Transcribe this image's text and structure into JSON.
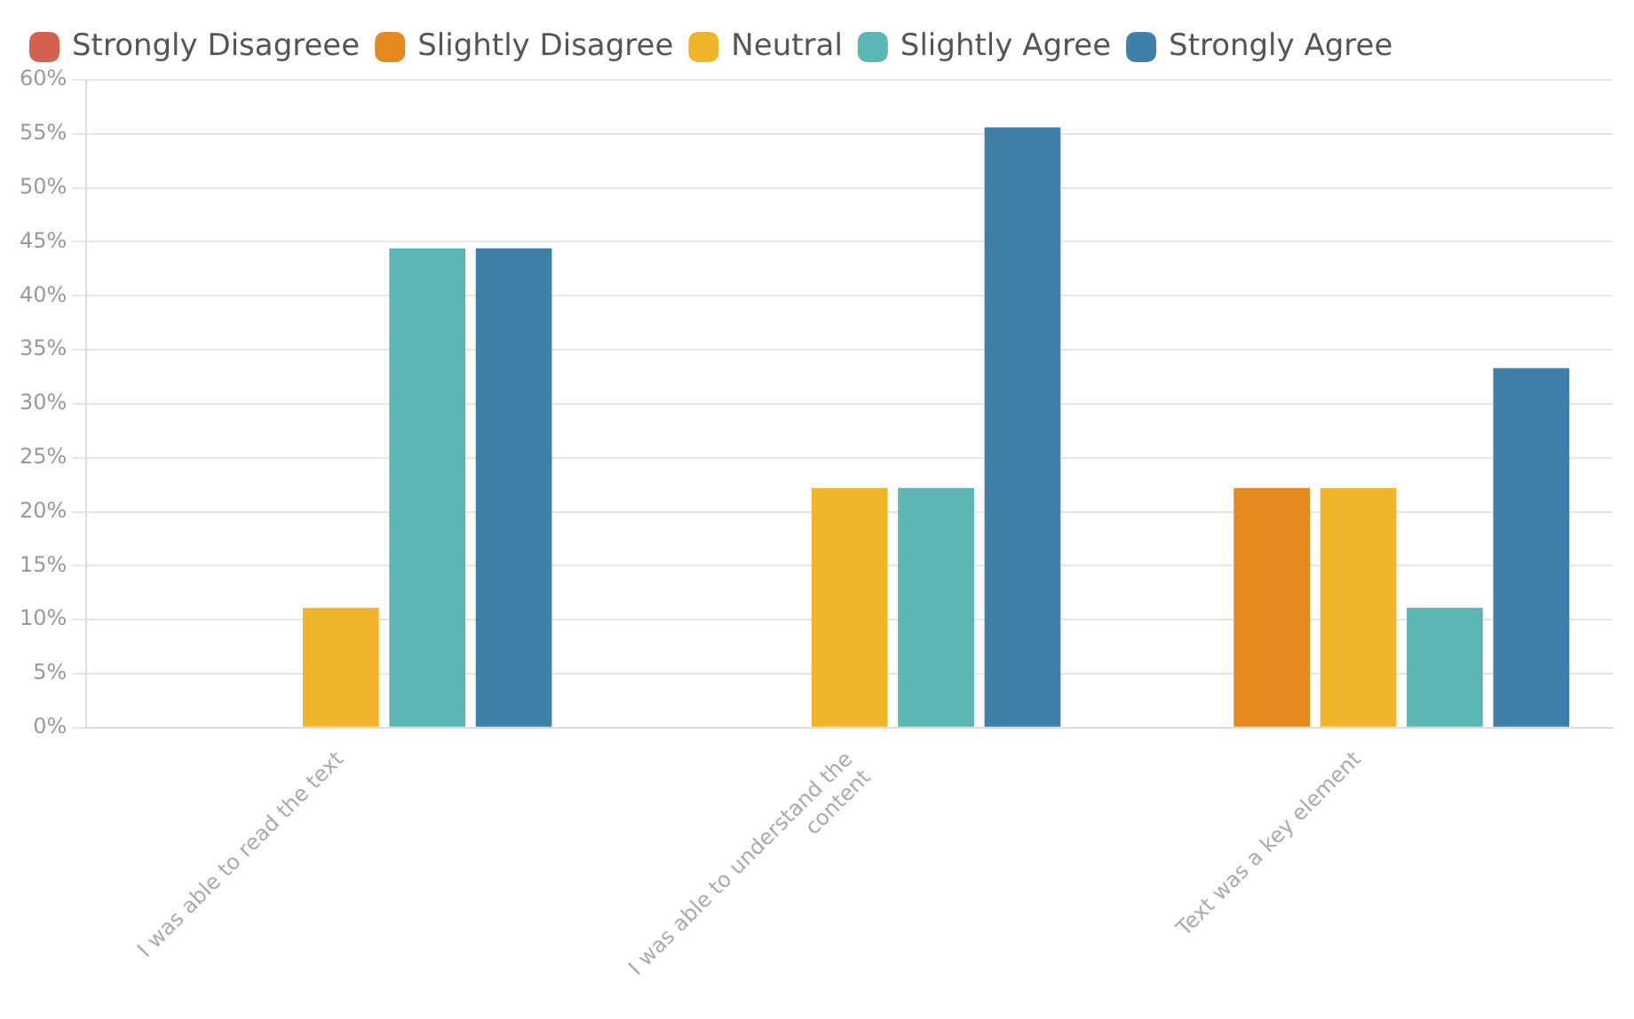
{
  "chart_data": {
    "type": "bar",
    "categories": [
      "I was able to read the text",
      "I was able to understand the content",
      "Text was a key element"
    ],
    "series": [
      {
        "name": "Strongly Disagreee",
        "color": "#d4604f",
        "values": [
          0,
          0,
          0
        ]
      },
      {
        "name": "Slightly Disagree",
        "color": "#e4891f",
        "values": [
          0,
          0,
          22.2
        ]
      },
      {
        "name": "Neutral",
        "color": "#f0b52a",
        "values": [
          11.1,
          22.2,
          22.2
        ]
      },
      {
        "name": "Slightly Agree",
        "color": "#5db5b4",
        "values": [
          44.4,
          22.2,
          11.1
        ]
      },
      {
        "name": "Strongly Agree",
        "color": "#3f7fa8",
        "values": [
          44.4,
          55.6,
          33.3
        ]
      }
    ],
    "ylim": [
      0,
      60
    ],
    "yticks": [
      {
        "value": 0,
        "label": "0%"
      },
      {
        "value": 5,
        "label": "5%"
      },
      {
        "value": 10,
        "label": "10%"
      },
      {
        "value": 15,
        "label": "15%"
      },
      {
        "value": 20,
        "label": "20%"
      },
      {
        "value": 25,
        "label": "25%"
      },
      {
        "value": 30,
        "label": "30%"
      },
      {
        "value": 35,
        "label": "35%"
      },
      {
        "value": 40,
        "label": "40%"
      },
      {
        "value": 45,
        "label": "45%"
      },
      {
        "value": 50,
        "label": "50%"
      },
      {
        "value": 55,
        "label": "55%"
      },
      {
        "value": 60,
        "label": "60%"
      }
    ],
    "grid": "y",
    "legend": "top left"
  }
}
